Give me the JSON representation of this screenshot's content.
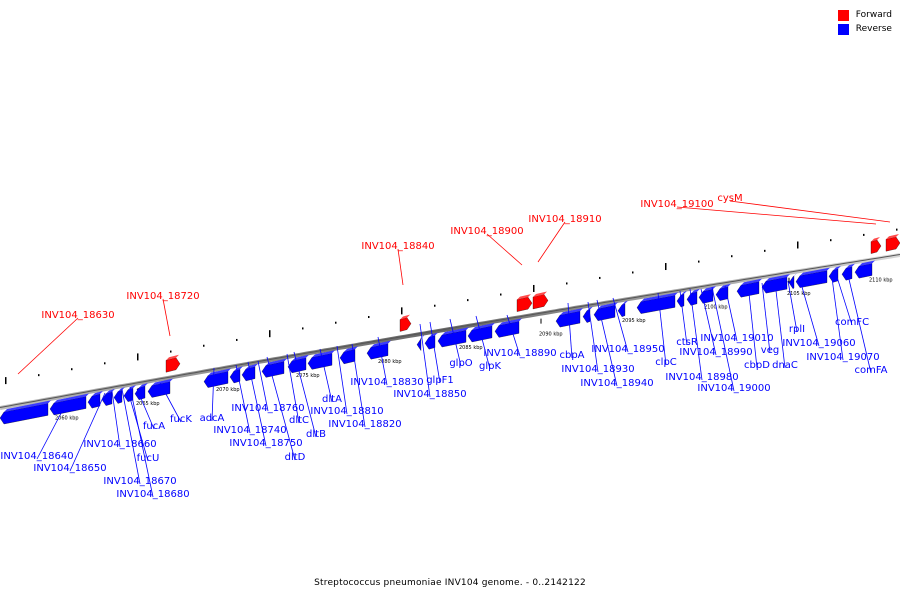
{
  "legend": {
    "forward_label": "Forward",
    "reverse_label": "Reverse",
    "forward_color": "#ff0000",
    "reverse_color": "#0000ff"
  },
  "caption": "Streptococcus pneumoniae INV104 genome. - 0..2142122",
  "scale_ticks": [
    "2060 kbp",
    "2065 kbp",
    "2070 kbp",
    "2075 kbp",
    "2080 kbp",
    "2085 kbp",
    "2090 kbp",
    "2095 kbp",
    "2100 kbp",
    "2105 kbp",
    "2110 kbp"
  ],
  "forward_genes": [
    "INV104_18630",
    "INV104_18720",
    "INV104_18840",
    "INV104_18900",
    "INV104_18910",
    "INV104_19100",
    "cysM"
  ],
  "reverse_genes": [
    "INV104_18640",
    "INV104_18650",
    "INV104_18660",
    "INV104_18670",
    "INV104_18680",
    "fucU",
    "fucA",
    "fucK",
    "adcA",
    "INV104_18740",
    "INV104_18750",
    "INV104_18760",
    "dltD",
    "dltB",
    "dltC",
    "dltA",
    "INV104_18810",
    "INV104_18820",
    "INV104_18830",
    "INV104_18850",
    "glpF1",
    "glpO",
    "glpK",
    "INV104_18890",
    "cbpA",
    "INV104_18930",
    "INV104_18940",
    "INV104_18950",
    "clpC",
    "ctsR",
    "INV104_18980",
    "INV104_18990",
    "INV104_19000",
    "INV104_19010",
    "cbpD",
    "veg",
    "dnaC",
    "rplI",
    "INV104_19060",
    "INV104_19070",
    "comFC",
    "comFA"
  ]
}
